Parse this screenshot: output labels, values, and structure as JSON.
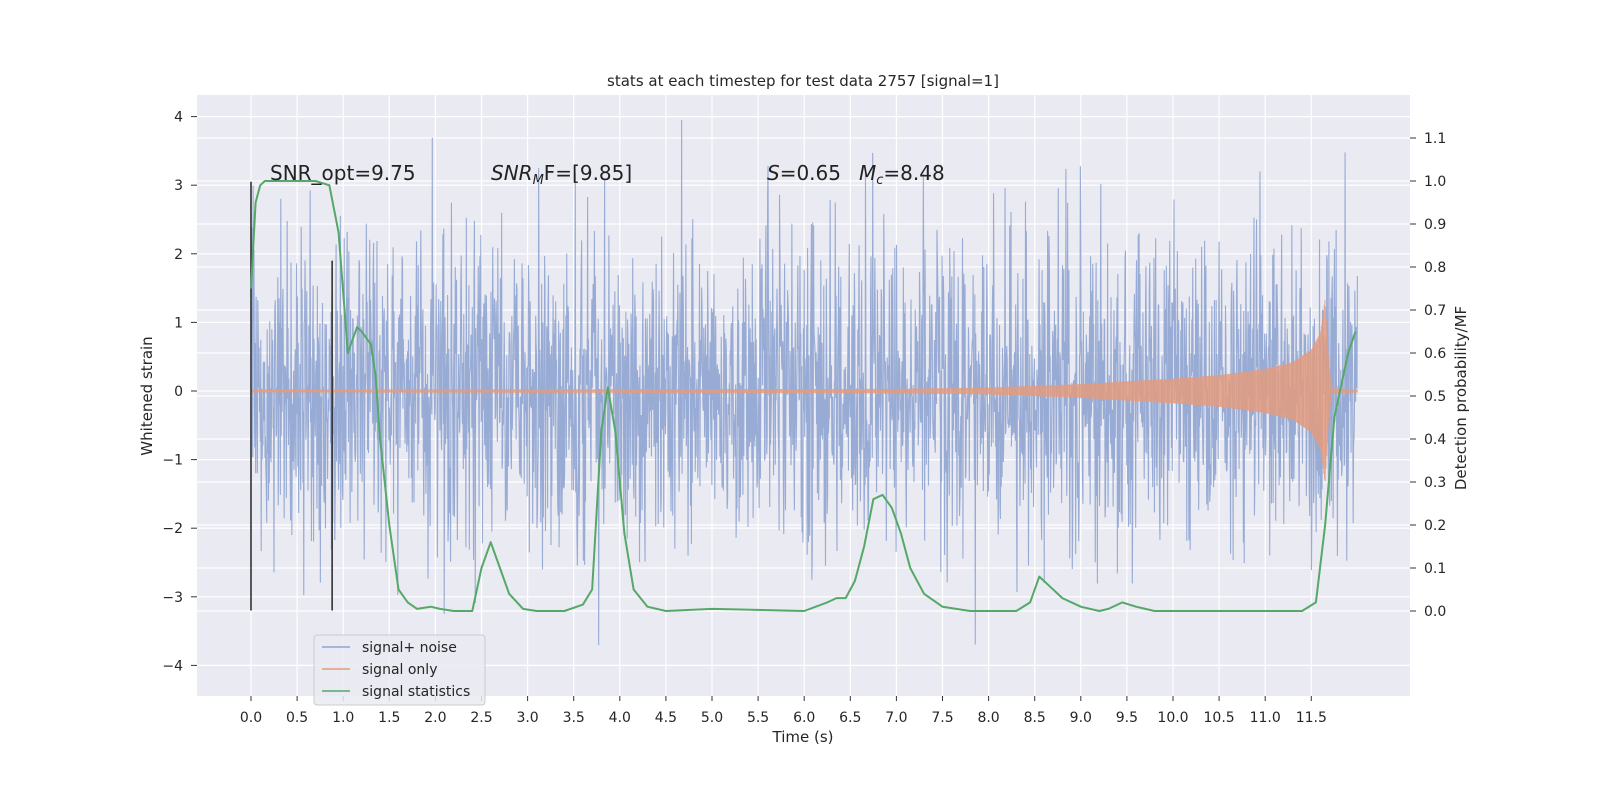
{
  "chart_data": {
    "type": "line",
    "title": "stats at each timestep for test data 2757 [signal=1]",
    "xlabel": "Time (s)",
    "ylabel": "Whitened strain",
    "ylabel_right": "Detection probability/MF",
    "xlim": [
      -0.58,
      12.58
    ],
    "ylim": [
      -4.45,
      4.3
    ],
    "ylim_right": [
      -0.2,
      1.2
    ],
    "grid": true,
    "legend_position": "lower-left",
    "x_ticks": [
      "0.0",
      "0.5",
      "1.0",
      "1.5",
      "2.0",
      "2.5",
      "3.0",
      "3.5",
      "4.0",
      "4.5",
      "5.0",
      "5.5",
      "6.0",
      "6.5",
      "7.0",
      "7.5",
      "8.0",
      "8.5",
      "9.0",
      "9.5",
      "10.0",
      "10.5",
      "11.0",
      "11.5"
    ],
    "y_ticks_left": [
      "4",
      "3",
      "2",
      "1",
      "0",
      "−1",
      "−2",
      "−3",
      "−4"
    ],
    "y_ticks_right": [
      "1.1",
      "1.0",
      "0.9",
      "0.8",
      "0.7",
      "0.6",
      "0.5",
      "0.4",
      "0.3",
      "0.2",
      "0.1",
      "0.0"
    ],
    "annotations": {
      "snr_opt": "SNR_opt=9.75",
      "snr_mf_main": "SNR",
      "snr_mf_sub": "M",
      "snr_mf_rest": "F=[9.85]",
      "s_main": "S",
      "s_rest": "=0.65",
      "mc_main": "M",
      "mc_sub": "c",
      "mc_rest": "=8.48"
    },
    "series": [
      {
        "name": "signal+ noise",
        "color": "#8fa4d0",
        "description_values": "white noise, amplitude roughly within [-4.1, 3.95], t from 0 to 12"
      },
      {
        "name": "signal only",
        "color": "#e39b7f",
        "envelope": {
          "t": [
            0.0,
            7.0,
            8.0,
            9.0,
            10.0,
            10.5,
            11.0,
            11.3,
            11.5,
            11.6,
            11.65,
            11.68,
            11.72,
            12.0
          ],
          "amplitude": [
            0.02,
            0.03,
            0.05,
            0.1,
            0.18,
            0.23,
            0.32,
            0.42,
            0.6,
            0.85,
            1.35,
            0.6,
            0.04,
            0.02
          ]
        }
      },
      {
        "name": "signal statistics",
        "color": "#55a868",
        "x": [
          0.0,
          0.05,
          0.1,
          0.15,
          0.2,
          0.3,
          0.5,
          0.7,
          0.85,
          0.95,
          1.05,
          1.15,
          1.2,
          1.3,
          1.35,
          1.4,
          1.5,
          1.6,
          1.7,
          1.8,
          1.95,
          2.05,
          2.2,
          2.4,
          2.5,
          2.6,
          2.7,
          2.8,
          2.95,
          3.1,
          3.4,
          3.6,
          3.7,
          3.8,
          3.87,
          3.95,
          4.05,
          4.15,
          4.3,
          4.5,
          5.0,
          6.0,
          6.25,
          6.35,
          6.45,
          6.55,
          6.65,
          6.75,
          6.85,
          6.95,
          7.05,
          7.15,
          7.3,
          7.5,
          7.8,
          8.3,
          8.45,
          8.55,
          8.65,
          8.8,
          9.0,
          9.2,
          9.3,
          9.45,
          9.6,
          9.8,
          10.5,
          11.4,
          11.55,
          11.65,
          11.75,
          11.9,
          11.98
        ],
        "y": [
          0.75,
          0.95,
          0.99,
          1.0,
          1.0,
          1.0,
          1.0,
          1.0,
          0.99,
          0.88,
          0.6,
          0.66,
          0.65,
          0.62,
          0.55,
          0.4,
          0.2,
          0.05,
          0.02,
          0.005,
          0.01,
          0.005,
          0.0,
          0.0,
          0.1,
          0.16,
          0.1,
          0.04,
          0.005,
          0.0,
          0.0,
          0.015,
          0.05,
          0.42,
          0.52,
          0.42,
          0.18,
          0.05,
          0.01,
          0.0,
          0.005,
          0.0,
          0.02,
          0.03,
          0.03,
          0.07,
          0.15,
          0.26,
          0.27,
          0.24,
          0.18,
          0.1,
          0.04,
          0.01,
          0.0,
          0.0,
          0.02,
          0.08,
          0.06,
          0.03,
          0.01,
          0.0,
          0.005,
          0.02,
          0.01,
          0.0,
          0.0,
          0.0,
          0.02,
          0.2,
          0.45,
          0.6,
          0.65
        ]
      }
    ],
    "vertical_markers": [
      {
        "x": 0.0,
        "y_range": [
          -3.2,
          3.05
        ],
        "color": "#333333"
      },
      {
        "x": 0.88,
        "y_range": [
          -3.2,
          1.9
        ],
        "color": "#333333"
      }
    ]
  }
}
